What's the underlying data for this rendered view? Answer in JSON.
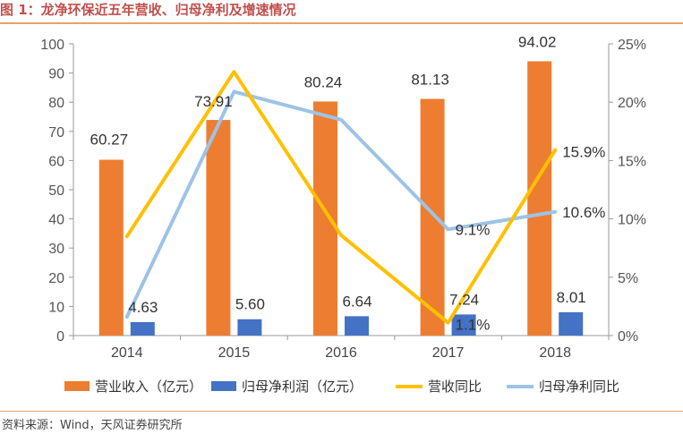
{
  "figure": {
    "title": "图 1：龙净环保近五年营收、归母净利及增速情况",
    "source": "资料来源：Wind，天风证券研究所"
  },
  "colors": {
    "revenue_bar": "#ed7d31",
    "profit_bar": "#4472c4",
    "revenue_growth_line": "#ffc000",
    "profit_growth_line": "#9dc3e6",
    "axis": "#999999",
    "rule": "#e8a26a",
    "title": "#c0504d"
  },
  "chart_data": {
    "type": "bar",
    "title": "",
    "categories": [
      "2014",
      "2015",
      "2016",
      "2017",
      "2018"
    ],
    "y_left": {
      "lim": [
        0,
        100
      ],
      "ticks": [
        0,
        10,
        20,
        30,
        40,
        50,
        60,
        70,
        80,
        90,
        100
      ]
    },
    "y_right": {
      "lim": [
        0,
        25
      ],
      "ticks": [
        "0%",
        "5%",
        "10%",
        "15%",
        "20%",
        "25%"
      ]
    },
    "series": [
      {
        "name": "营业收入（亿元）",
        "kind": "bar",
        "axis": "left",
        "values": [
          60.27,
          73.91,
          80.24,
          81.13,
          94.02
        ],
        "labels": [
          "60.27",
          "73.91",
          "80.24",
          "81.13",
          "94.02"
        ]
      },
      {
        "name": "归母净利润（亿元）",
        "kind": "bar",
        "axis": "left",
        "values": [
          4.63,
          5.6,
          6.64,
          7.24,
          8.01
        ],
        "labels": [
          "4.63",
          "5.60",
          "6.64",
          "7.24",
          "8.01"
        ]
      },
      {
        "name": "营收同比",
        "kind": "line",
        "axis": "right",
        "values": [
          8.5,
          22.6,
          8.6,
          1.1,
          15.9
        ],
        "labels": [
          "",
          "",
          "",
          "1.1%",
          "15.9%"
        ]
      },
      {
        "name": "归母净利同比",
        "kind": "line",
        "axis": "right",
        "values": [
          1.6,
          20.9,
          18.5,
          9.1,
          10.6
        ],
        "labels": [
          "",
          "",
          "",
          "9.1%",
          "10.6%"
        ]
      }
    ],
    "grid": false,
    "legend": "bottom"
  }
}
